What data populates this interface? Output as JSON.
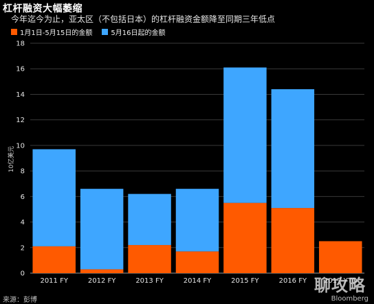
{
  "chart_data": {
    "type": "bar",
    "stacked": true,
    "title": "杠杆融资大幅萎缩",
    "subtitle": "今年迄今为止，亚太区（不包括日本）的杠杆融资金额降至同期三年低点",
    "ylabel": "10亿美元",
    "ylim": [
      0,
      18
    ],
    "yticks": [
      0,
      2,
      4,
      6,
      8,
      10,
      12,
      14,
      16,
      18
    ],
    "grid": true,
    "legend_position": "top-left",
    "categories": [
      "2011 FY",
      "2012 FY",
      "2013 FY",
      "2014 FY",
      "2015 FY",
      "2016 FY",
      "2017 YTD"
    ],
    "series": [
      {
        "name": "1月1日-5月15日的金额",
        "color": "#ff5a00",
        "values": [
          2.1,
          0.3,
          2.2,
          1.7,
          5.5,
          5.1,
          2.5
        ]
      },
      {
        "name": "5月16日起的金额",
        "color": "#3ea6ff",
        "values": [
          7.6,
          6.3,
          4.0,
          4.9,
          10.6,
          9.3,
          0
        ]
      }
    ]
  },
  "footer": {
    "source": "来源：彭博",
    "brand": "Bloomberg",
    "watermark": "聊攻略"
  }
}
